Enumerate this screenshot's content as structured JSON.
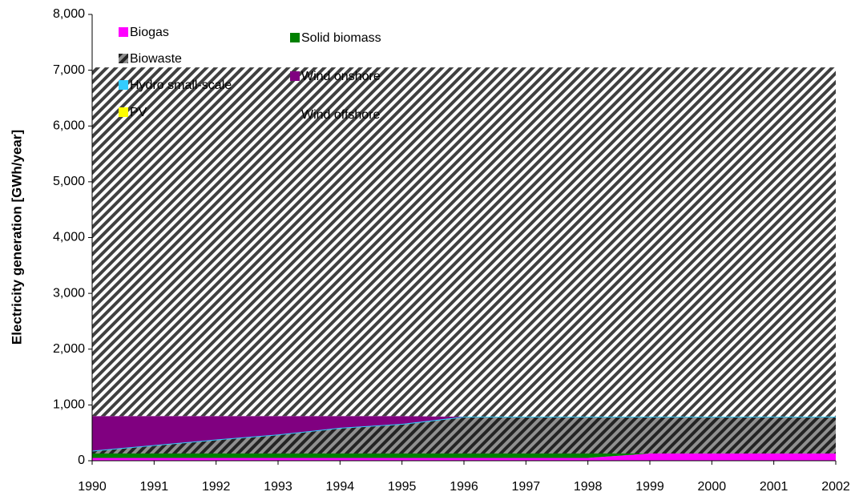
{
  "chart_data": {
    "type": "area",
    "stacked": true,
    "y_axis_label": "Electricity generation [GWh/year]",
    "x": [
      1990,
      1991,
      1992,
      1993,
      1994,
      1995,
      1996,
      1997,
      1998,
      1999,
      2000,
      2001,
      2002
    ],
    "xlim": [
      1990,
      2002
    ],
    "xticks": [
      1990,
      1991,
      1992,
      1993,
      1994,
      1995,
      1996,
      1997,
      1998,
      1999,
      2000,
      2001,
      2002
    ],
    "ylim": [
      0,
      8000
    ],
    "yticks": [
      0,
      {
        "value": 1000,
        "label": "1,000"
      },
      {
        "value": 2000,
        "label": "2,000"
      },
      {
        "value": 3000,
        "label": "3,000"
      },
      {
        "value": 4000,
        "label": "4,000"
      },
      {
        "value": 5000,
        "label": "5,000"
      },
      {
        "value": 6000,
        "label": "6,000"
      },
      {
        "value": 7000,
        "label": "7,000"
      },
      {
        "value": 8000,
        "label": "8,000"
      }
    ],
    "legend": "top-left",
    "series": [
      {
        "name": "Biogas",
        "color": "#ff00ff",
        "values": [
          50,
          50,
          50,
          50,
          50,
          50,
          50,
          50,
          50,
          130,
          130,
          130,
          130
        ]
      },
      {
        "name": "Solid biomass",
        "color": "#008000",
        "values": [
          80,
          80,
          80,
          80,
          80,
          80,
          80,
          80,
          80,
          0,
          0,
          0,
          0
        ]
      },
      {
        "name": "Biowaste",
        "color": "#909090",
        "hatch": true,
        "values": [
          40,
          140,
          240,
          330,
          450,
          520,
          650,
          650,
          650,
          650,
          650,
          650,
          650
        ]
      },
      {
        "name": "Hydro small-scale",
        "color": "#33ccff",
        "values": [
          10,
          10,
          10,
          10,
          10,
          10,
          10,
          10,
          10,
          10,
          10,
          10,
          10
        ]
      },
      {
        "name": "Wind onshore",
        "color": "#800080",
        "values": [
          620,
          520,
          420,
          330,
          210,
          140,
          0,
          0,
          0,
          0,
          0,
          0,
          0
        ]
      },
      {
        "name": "PV",
        "color": "#ffff00",
        "values": [
          0,
          0,
          0,
          0,
          0,
          0,
          0,
          0,
          0,
          0,
          0,
          0,
          0
        ]
      },
      {
        "name": "Wind offshore",
        "color": "#ffffff",
        "hatch": true,
        "values": [
          6250,
          6250,
          6250,
          6250,
          6250,
          6250,
          6260,
          6260,
          6260,
          6260,
          6260,
          6260,
          6260
        ]
      }
    ]
  }
}
